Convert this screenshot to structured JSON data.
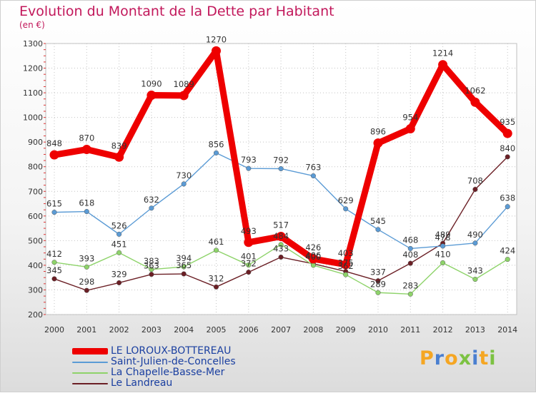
{
  "header": {
    "title": "Evolution du Montant de la Dette par Habitant",
    "unit": "(en €)"
  },
  "chart_data": {
    "type": "line",
    "title": "Evolution du Montant de la Dette par Habitant",
    "ylabel": "(en €)",
    "xlabel": "",
    "ylim": [
      200,
      1300
    ],
    "yticks": [
      "200",
      "300",
      "400",
      "500",
      "600",
      "700",
      "800",
      "900",
      "1000",
      "1100",
      "1200",
      "1300"
    ],
    "categories": [
      "2000",
      "2001",
      "2002",
      "2003",
      "2004",
      "2005",
      "2006",
      "2007",
      "2008",
      "2009",
      "2010",
      "2011",
      "2012",
      "2013",
      "2014"
    ],
    "grid": true,
    "series": [
      {
        "name": "LE LOROUX-BOTTEREAU",
        "color": "#ee0000",
        "emphasis": true,
        "values": [
          848,
          870,
          839,
          1090,
          1089,
          1270,
          493,
          517,
          426,
          403,
          896,
          954,
          1214,
          1062,
          935
        ],
        "labels": [
          "848",
          "870",
          "839",
          "1090",
          "1089",
          "1270",
          "493",
          "517",
          "426",
          "403",
          "896",
          "954",
          "1214",
          "1062",
          "935"
        ]
      },
      {
        "name": "Saint-Julien-de-Concelles",
        "color": "#5b9bd5",
        "emphasis": false,
        "values": [
          615,
          618,
          526,
          632,
          730,
          856,
          793,
          792,
          763,
          629,
          545,
          468,
          478,
          490,
          638
        ],
        "labels": [
          "615",
          "618",
          "526",
          "632",
          "730",
          "856",
          "793",
          "792",
          "763",
          "629",
          "545",
          "468",
          "478",
          "490",
          "638"
        ]
      },
      {
        "name": "La Chapelle-Basse-Mer",
        "color": "#8ed36a",
        "emphasis": false,
        "values": [
          412,
          393,
          451,
          383,
          394,
          461,
          401,
          484,
          400,
          362,
          289,
          283,
          410,
          343,
          424
        ],
        "labels": [
          "412",
          "393",
          "451",
          "383",
          "394",
          "461",
          "401",
          "484",
          "400",
          "362",
          "289",
          "283",
          "410",
          "343",
          "424"
        ]
      },
      {
        "name": "Le Landreau",
        "color": "#6b1f25",
        "emphasis": false,
        "values": [
          345,
          298,
          329,
          363,
          365,
          312,
          372,
          433,
          406,
          375,
          337,
          408,
          489,
          708,
          840
        ],
        "labels": [
          "345",
          "298",
          "329",
          "363",
          "365",
          "312",
          "372",
          "433",
          "406",
          "375",
          "337",
          "408",
          "489",
          "708",
          "840"
        ]
      }
    ]
  },
  "legend": {
    "items": [
      {
        "label": "LE LOROUX-BOTTEREAU",
        "color": "#ee0000"
      },
      {
        "label": "Saint-Julien-de-Concelles",
        "color": "#5b9bd5"
      },
      {
        "label": "La Chapelle-Basse-Mer",
        "color": "#8ed36a"
      },
      {
        "label": "Le Landreau",
        "color": "#6b1f25"
      }
    ]
  },
  "logo": {
    "text": "Proxiti",
    "colors": [
      "#f5a623",
      "#4a7fd0",
      "#f5a623",
      "#7cc242",
      "#4a7fd0",
      "#f5a623",
      "#7cc242"
    ]
  }
}
